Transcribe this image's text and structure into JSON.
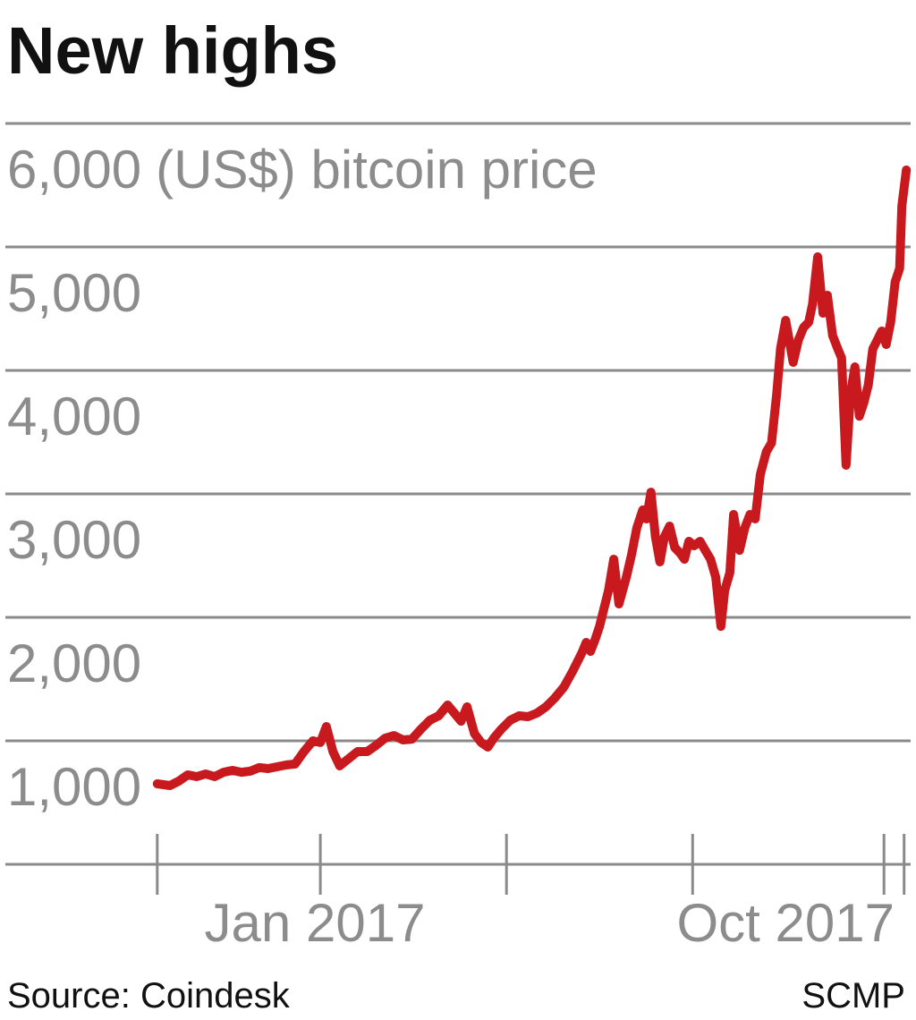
{
  "chart_data": {
    "type": "line",
    "title": "New highs",
    "y_label": "(US$) bitcoin price",
    "source": "Source: Coindesk",
    "credit": "SCMP",
    "x_labels": [
      "Jan 2017",
      "Oct 2017"
    ],
    "ylim": [
      0,
      6000
    ],
    "yticks": [
      {
        "value": 1000,
        "label": "1,000"
      },
      {
        "value": 2000,
        "label": "2,000"
      },
      {
        "value": 3000,
        "label": "3,000"
      },
      {
        "value": 4000,
        "label": "4,000"
      },
      {
        "value": 5000,
        "label": "5,000"
      },
      {
        "value": 6000,
        "label": "6,000"
      }
    ],
    "xlim": [
      2016.75,
      2017.8
    ],
    "xticks": [
      2016.781,
      2017,
      2017.25,
      2017.5,
      2017.757,
      2017.784
    ],
    "grid": true,
    "series": [
      {
        "name": "bitcoin price",
        "color": "#c8191f",
        "x": [
          2016.781,
          2016.798,
          2016.81,
          2016.822,
          2016.834,
          2016.846,
          2016.858,
          2016.87,
          2016.882,
          2016.894,
          2016.906,
          2016.918,
          2016.93,
          2016.942,
          2016.954,
          2016.966,
          2016.978,
          2016.99,
          2017.0,
          2017.008,
          2017.017,
          2017.026,
          2017.038,
          2017.05,
          2017.063,
          2017.075,
          2017.087,
          2017.099,
          2017.111,
          2017.123,
          2017.135,
          2017.147,
          2017.159,
          2017.171,
          2017.183,
          2017.189,
          2017.197,
          2017.207,
          2017.216,
          2017.225,
          2017.233,
          2017.243,
          2017.255,
          2017.267,
          2017.279,
          2017.291,
          2017.303,
          2017.315,
          2017.327,
          2017.339,
          2017.351,
          2017.357,
          2017.363,
          2017.369,
          2017.375,
          2017.381,
          2017.387,
          2017.394,
          2017.401,
          2017.411,
          2017.418,
          2017.425,
          2017.433,
          2017.438,
          2017.444,
          2017.45,
          2017.456,
          2017.462,
          2017.469,
          2017.476,
          2017.483,
          2017.489,
          2017.495,
          2017.502,
          2017.51,
          2017.517,
          2017.524,
          2017.531,
          2017.538,
          2017.543,
          2017.55,
          2017.555,
          2017.563,
          2017.57,
          2017.577,
          2017.584,
          2017.591,
          2017.599,
          2017.606,
          2017.613,
          2017.618,
          2017.625,
          2017.635,
          2017.642,
          2017.649,
          2017.656,
          2017.661,
          2017.668,
          2017.675,
          2017.681,
          2017.688,
          2017.695,
          2017.7,
          2017.706,
          2017.712,
          2017.718,
          2017.724,
          2017.73,
          2017.736,
          2017.742,
          2017.748,
          2017.754,
          2017.76,
          2017.766,
          2017.772,
          2017.778,
          2017.781,
          2017.787
        ],
        "values": [
          652,
          638,
          674,
          725,
          710,
          732,
          710,
          746,
          761,
          746,
          754,
          783,
          775,
          790,
          804,
          812,
          913,
          1000,
          986,
          1116,
          913,
          797,
          855,
          913,
          913,
          964,
          1022,
          1043,
          1007,
          1014,
          1094,
          1167,
          1203,
          1290,
          1203,
          1159,
          1275,
          1058,
          986,
          949,
          1022,
          1094,
          1167,
          1203,
          1196,
          1225,
          1275,
          1348,
          1435,
          1565,
          1710,
          1797,
          1725,
          1819,
          1927,
          2072,
          2217,
          2471,
          2109,
          2326,
          2507,
          2725,
          2870,
          2797,
          3014,
          2652,
          2449,
          2652,
          2739,
          2565,
          2522,
          2471,
          2616,
          2580,
          2616,
          2543,
          2471,
          2326,
          1927,
          2217,
          2362,
          2833,
          2543,
          2725,
          2833,
          2797,
          3159,
          3341,
          3413,
          3812,
          4174,
          4406,
          4065,
          4246,
          4348,
          4391,
          4536,
          4920,
          4464,
          4609,
          4282,
          4174,
          4101,
          3232,
          3812,
          4029,
          3630,
          3739,
          3884,
          4174,
          4246,
          4319,
          4210,
          4391,
          4717,
          4826,
          5333,
          5623
        ]
      }
    ]
  }
}
